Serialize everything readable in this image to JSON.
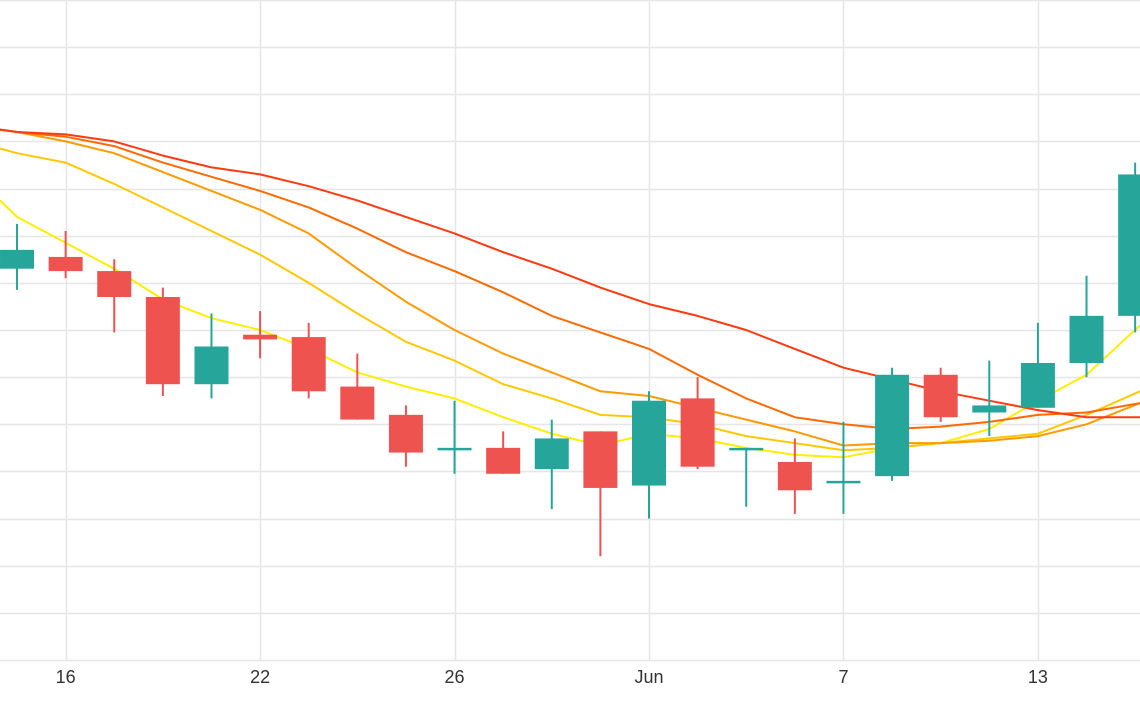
{
  "chart_data": {
    "type": "candlestick",
    "x_tick_labels": [
      {
        "label": "16",
        "index": 1
      },
      {
        "label": "22",
        "index": 5
      },
      {
        "label": "26",
        "index": 9
      },
      {
        "label": "Jun",
        "index": 13
      },
      {
        "label": "7",
        "index": 17
      },
      {
        "label": "13",
        "index": 21
      }
    ],
    "ylim": [
      0,
      14
    ],
    "y_gridlines": [
      0,
      1,
      2,
      3,
      4,
      5,
      6,
      7,
      8,
      9,
      10,
      11,
      12,
      13,
      14
    ],
    "x_index_range": [
      -0.35,
      23.1
    ],
    "grid": true,
    "candles": [
      {
        "i": 0,
        "open": 8.3,
        "close": 8.7,
        "high": 9.25,
        "low": 7.85
      },
      {
        "i": 1,
        "open": 8.55,
        "close": 8.25,
        "high": 9.1,
        "low": 8.1
      },
      {
        "i": 2,
        "open": 8.25,
        "close": 7.7,
        "high": 8.5,
        "low": 6.95
      },
      {
        "i": 3,
        "open": 7.7,
        "close": 5.85,
        "high": 7.9,
        "low": 5.6
      },
      {
        "i": 4,
        "open": 5.85,
        "close": 6.65,
        "high": 7.35,
        "low": 5.55
      },
      {
        "i": 5,
        "open": 6.9,
        "close": 6.8,
        "high": 7.4,
        "low": 6.4
      },
      {
        "i": 6,
        "open": 6.85,
        "close": 5.7,
        "high": 7.15,
        "low": 5.55
      },
      {
        "i": 7,
        "open": 5.8,
        "close": 5.1,
        "high": 6.5,
        "low": 5.1
      },
      {
        "i": 8,
        "open": 5.2,
        "close": 4.4,
        "high": 5.4,
        "low": 4.1
      },
      {
        "i": 9,
        "open": 4.5,
        "close": 4.5,
        "high": 5.5,
        "low": 3.95
      },
      {
        "i": 10,
        "open": 4.5,
        "close": 3.95,
        "high": 4.85,
        "low": 3.95
      },
      {
        "i": 11,
        "open": 4.05,
        "close": 4.7,
        "high": 5.1,
        "low": 3.2
      },
      {
        "i": 12,
        "open": 4.85,
        "close": 3.65,
        "high": 4.85,
        "low": 2.2
      },
      {
        "i": 13,
        "open": 3.7,
        "close": 5.5,
        "high": 5.7,
        "low": 3.0
      },
      {
        "i": 14,
        "open": 5.55,
        "close": 4.1,
        "high": 6.0,
        "low": 4.05
      },
      {
        "i": 15,
        "open": 4.5,
        "close": 4.5,
        "high": 4.5,
        "low": 3.25
      },
      {
        "i": 16,
        "open": 4.2,
        "close": 3.6,
        "high": 4.7,
        "low": 3.1
      },
      {
        "i": 17,
        "open": 3.8,
        "close": 3.8,
        "high": 5.05,
        "low": 3.1
      },
      {
        "i": 18,
        "open": 3.9,
        "close": 6.05,
        "high": 6.2,
        "low": 3.8
      },
      {
        "i": 19,
        "open": 6.05,
        "close": 5.15,
        "high": 6.2,
        "low": 5.05
      },
      {
        "i": 20,
        "open": 5.25,
        "close": 5.4,
        "high": 6.35,
        "low": 4.75
      },
      {
        "i": 21,
        "open": 5.35,
        "close": 6.3,
        "high": 7.15,
        "low": 5.35
      },
      {
        "i": 22,
        "open": 6.3,
        "close": 7.3,
        "high": 8.15,
        "low": 6.0
      },
      {
        "i": 23,
        "open": 7.3,
        "close": 10.3,
        "high": 10.55,
        "low": 6.95
      }
    ],
    "moving_averages": [
      {
        "color": "#ffee00",
        "points": [
          [
            -0.35,
            9.75
          ],
          [
            0,
            9.4
          ],
          [
            1,
            8.85
          ],
          [
            2,
            8.3
          ],
          [
            3,
            7.65
          ],
          [
            4,
            7.25
          ],
          [
            5,
            7.0
          ],
          [
            6,
            6.6
          ],
          [
            7,
            6.1
          ],
          [
            8,
            5.8
          ],
          [
            9,
            5.55
          ],
          [
            10,
            5.15
          ],
          [
            11,
            4.8
          ],
          [
            12,
            4.55
          ],
          [
            13,
            4.8
          ],
          [
            14,
            4.7
          ],
          [
            15,
            4.5
          ],
          [
            16,
            4.35
          ],
          [
            17,
            4.3
          ],
          [
            18,
            4.5
          ],
          [
            19,
            4.6
          ],
          [
            20,
            4.9
          ],
          [
            21,
            5.5
          ],
          [
            22,
            6.05
          ],
          [
            23.1,
            7.1
          ]
        ]
      },
      {
        "color": "#ffc800",
        "points": [
          [
            -0.35,
            10.85
          ],
          [
            0,
            10.75
          ],
          [
            1,
            10.55
          ],
          [
            2,
            10.1
          ],
          [
            3,
            9.6
          ],
          [
            4,
            9.1
          ],
          [
            5,
            8.6
          ],
          [
            6,
            8.0
          ],
          [
            7,
            7.35
          ],
          [
            8,
            6.75
          ],
          [
            9,
            6.35
          ],
          [
            10,
            5.85
          ],
          [
            11,
            5.55
          ],
          [
            12,
            5.2
          ],
          [
            13,
            5.15
          ],
          [
            14,
            5.0
          ],
          [
            15,
            4.75
          ],
          [
            16,
            4.6
          ],
          [
            17,
            4.45
          ],
          [
            18,
            4.5
          ],
          [
            19,
            4.6
          ],
          [
            20,
            4.7
          ],
          [
            21,
            4.8
          ],
          [
            22,
            5.2
          ],
          [
            23.1,
            5.7
          ]
        ]
      },
      {
        "color": "#ff9a00",
        "points": [
          [
            -0.35,
            11.25
          ],
          [
            0,
            11.2
          ],
          [
            1,
            11.0
          ],
          [
            2,
            10.75
          ],
          [
            3,
            10.35
          ],
          [
            4,
            9.95
          ],
          [
            5,
            9.55
          ],
          [
            6,
            9.05
          ],
          [
            7,
            8.3
          ],
          [
            8,
            7.6
          ],
          [
            9,
            7.0
          ],
          [
            10,
            6.5
          ],
          [
            11,
            6.1
          ],
          [
            12,
            5.7
          ],
          [
            13,
            5.6
          ],
          [
            14,
            5.35
          ],
          [
            15,
            5.1
          ],
          [
            16,
            4.85
          ],
          [
            17,
            4.55
          ],
          [
            18,
            4.6
          ],
          [
            19,
            4.6
          ],
          [
            20,
            4.65
          ],
          [
            21,
            4.75
          ],
          [
            22,
            5.0
          ],
          [
            23.1,
            5.45
          ]
        ]
      },
      {
        "color": "#ff6a00",
        "points": [
          [
            -0.35,
            11.25
          ],
          [
            0,
            11.2
          ],
          [
            1,
            11.1
          ],
          [
            2,
            10.9
          ],
          [
            3,
            10.55
          ],
          [
            4,
            10.25
          ],
          [
            5,
            9.95
          ],
          [
            6,
            9.6
          ],
          [
            7,
            9.15
          ],
          [
            8,
            8.65
          ],
          [
            9,
            8.25
          ],
          [
            10,
            7.8
          ],
          [
            11,
            7.3
          ],
          [
            12,
            6.95
          ],
          [
            13,
            6.6
          ],
          [
            14,
            6.05
          ],
          [
            15,
            5.55
          ],
          [
            16,
            5.15
          ],
          [
            17,
            5.0
          ],
          [
            18,
            4.9
          ],
          [
            19,
            4.95
          ],
          [
            20,
            5.05
          ],
          [
            21,
            5.2
          ],
          [
            22,
            5.25
          ],
          [
            23.1,
            5.45
          ]
        ]
      },
      {
        "color": "#ff3a10",
        "points": [
          [
            -0.35,
            11.25
          ],
          [
            0,
            11.2
          ],
          [
            1,
            11.15
          ],
          [
            2,
            11.0
          ],
          [
            3,
            10.7
          ],
          [
            4,
            10.45
          ],
          [
            5,
            10.3
          ],
          [
            6,
            10.05
          ],
          [
            7,
            9.75
          ],
          [
            8,
            9.4
          ],
          [
            9,
            9.05
          ],
          [
            10,
            8.65
          ],
          [
            11,
            8.3
          ],
          [
            12,
            7.9
          ],
          [
            13,
            7.55
          ],
          [
            14,
            7.3
          ],
          [
            15,
            7.0
          ],
          [
            16,
            6.6
          ],
          [
            17,
            6.2
          ],
          [
            18,
            5.95
          ],
          [
            19,
            5.7
          ],
          [
            20,
            5.5
          ],
          [
            21,
            5.3
          ],
          [
            22,
            5.15
          ],
          [
            23.1,
            5.15
          ]
        ]
      }
    ],
    "colors": {
      "up": "#26a69a",
      "down": "#ef5350",
      "grid": "#e6e6e6"
    }
  }
}
